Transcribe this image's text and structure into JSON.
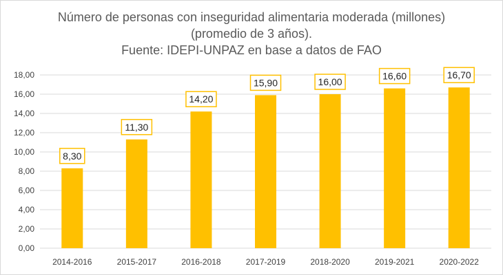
{
  "chart_data": {
    "type": "bar",
    "title": [
      "Número de personas con inseguridad alimentaria moderada (millones)",
      "(promedio de 3 años).",
      "Fuente: IDEPI-UNPAZ en base a datos de FAO"
    ],
    "categories": [
      "2014-2016",
      "2015-2017",
      "2016-2018",
      "2017-2019",
      "2018-2020",
      "2019-2021",
      "2020-2022"
    ],
    "values": [
      8.3,
      11.3,
      14.2,
      15.9,
      16.0,
      16.6,
      16.7
    ],
    "data_labels": [
      "8,30",
      "11,30",
      "14,20",
      "15,90",
      "16,00",
      "16,60",
      "16,70"
    ],
    "ylim": [
      0,
      18
    ],
    "yticks": [
      0,
      2,
      4,
      6,
      8,
      10,
      12,
      14,
      16,
      18
    ],
    "ytick_labels": [
      "0,00",
      "2,00",
      "4,00",
      "6,00",
      "8,00",
      "10,00",
      "12,00",
      "14,00",
      "16,00",
      "18,00"
    ],
    "xlabel": "",
    "ylabel": "",
    "grid": true,
    "bar_color": "#FFC000",
    "label_border_color": "#FFC000",
    "grid_color": "#D9D9D9",
    "text_color": "#595959"
  }
}
